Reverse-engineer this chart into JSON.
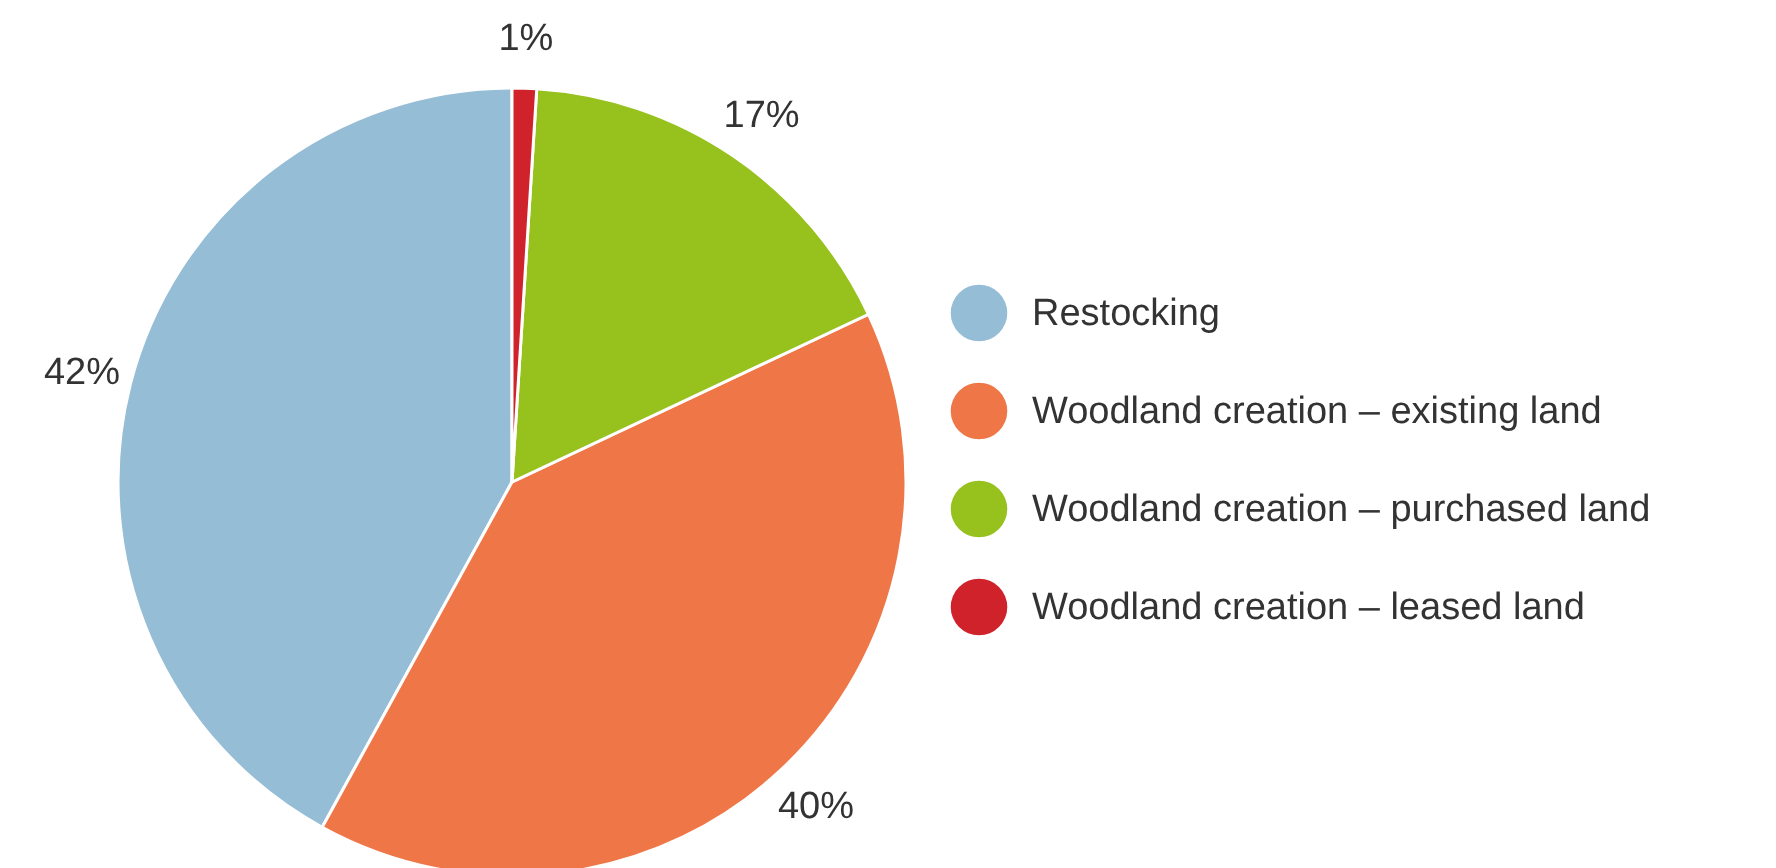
{
  "chart_data": {
    "type": "pie",
    "categories": [
      "Restocking",
      "Woodland creation – existing land",
      "Woodland creation – purchased land",
      "Woodland creation – leased land"
    ],
    "values": [
      42,
      40,
      17,
      1
    ],
    "colors": [
      "#96bdd6",
      "#ef7647",
      "#97c21e",
      "#d0222b"
    ],
    "value_labels": [
      "42%",
      "40%",
      "17%",
      "1%"
    ],
    "legend": "right"
  }
}
